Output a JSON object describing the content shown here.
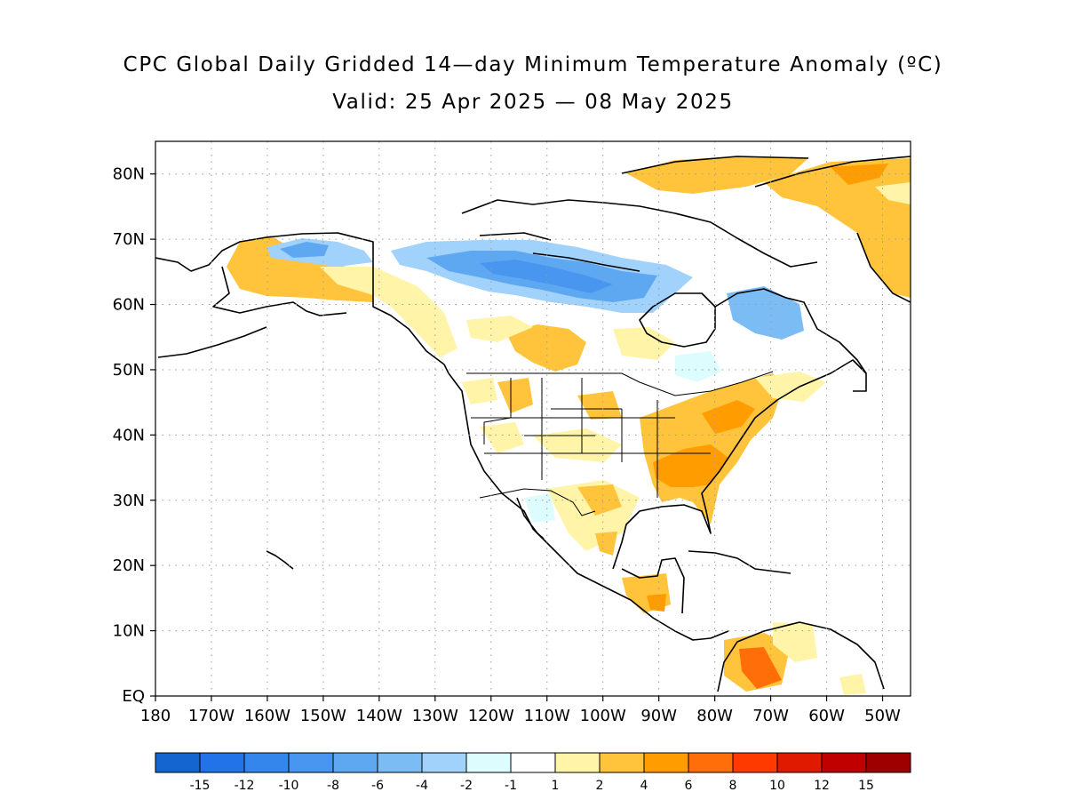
{
  "title": "CPC Global Daily Gridded 14—day Minimum Temperature Anomaly (ºC)",
  "subtitle": "Valid: 25 Apr 2025 — 08 May 2025",
  "map": {
    "lon_range": [
      -180,
      -45
    ],
    "lat_range": [
      0,
      85
    ],
    "grid": "dotted",
    "lat_labels": [
      "EQ",
      "10N",
      "20N",
      "30N",
      "40N",
      "50N",
      "60N",
      "70N",
      "80N"
    ],
    "lon_labels": [
      "180",
      "170W",
      "160W",
      "150W",
      "140W",
      "130W",
      "120W",
      "110W",
      "100W",
      "90W",
      "80W",
      "70W",
      "60W",
      "50W"
    ]
  },
  "colorbar": {
    "colors": [
      "#1565d0",
      "#2272ea",
      "#3586ec",
      "#4896f0",
      "#5ea8f2",
      "#7cbcf5",
      "#a0d2fb",
      "#ddfcfe",
      "#ffffff",
      "#fff4a8",
      "#ffc43c",
      "#ff9c00",
      "#ff6e08",
      "#ff3a00",
      "#e01a00",
      "#c00000",
      "#9e0000"
    ],
    "labels": [
      "-15",
      "-12",
      "-10",
      "-8",
      "-6",
      "-4",
      "-2",
      "-1",
      "1",
      "2",
      "4",
      "6",
      "8",
      "10",
      "12",
      "15"
    ]
  },
  "anomaly_colors": {
    "cold": "#4896f0",
    "cold_light": "#a0d2fb",
    "warm_light": "#fff4a8",
    "warm": "#ffc43c",
    "warm_strong": "#ff9c00",
    "hot": "#ff6e08"
  }
}
